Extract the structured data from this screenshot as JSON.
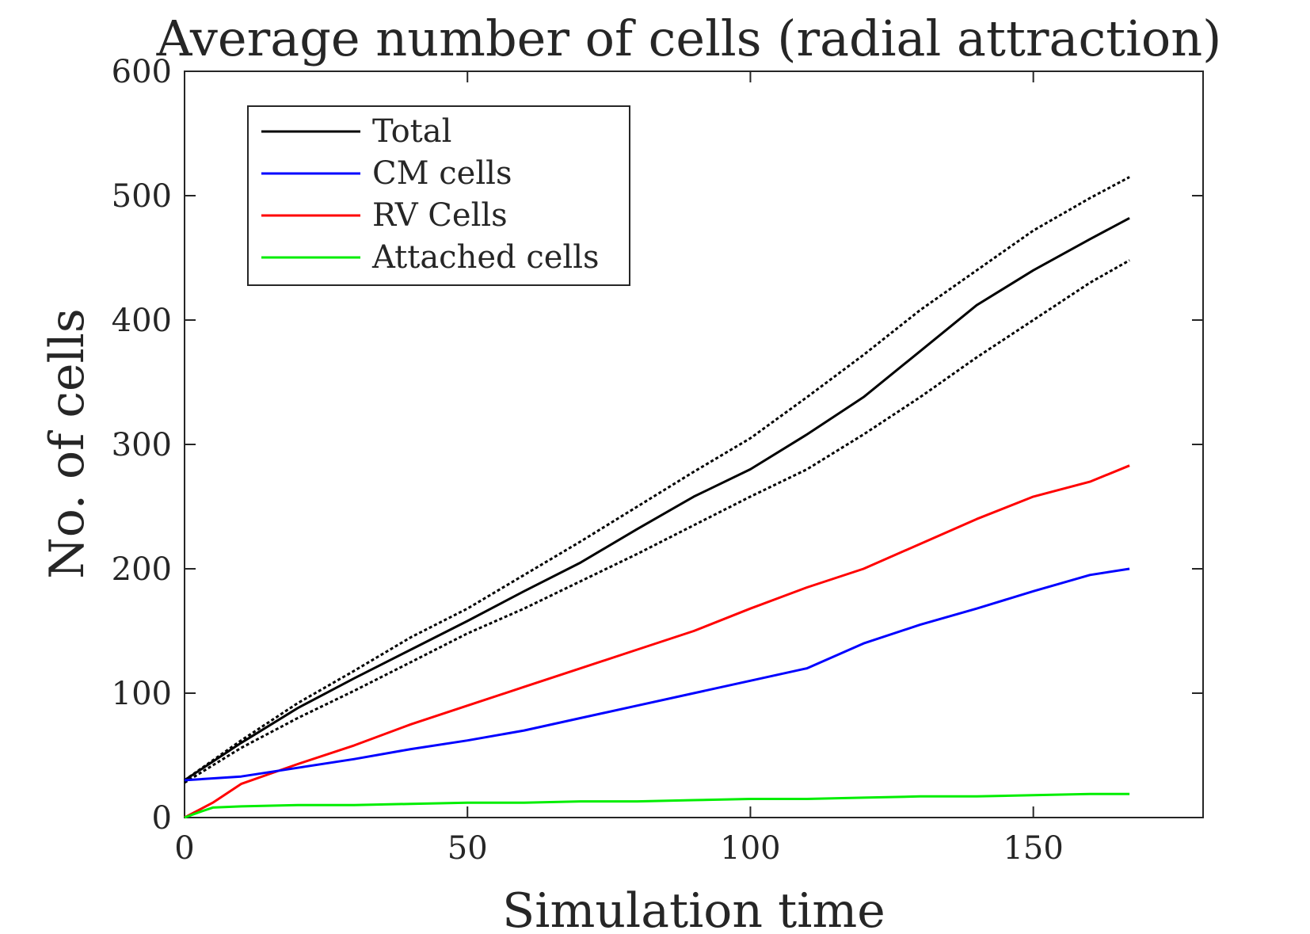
{
  "chart_data": {
    "type": "line",
    "title": "Average number of cells (radial attraction)",
    "xlabel": "Simulation time",
    "ylabel": "No. of cells",
    "xlim": [
      0,
      180
    ],
    "ylim": [
      0,
      600
    ],
    "xticks": [
      0,
      50,
      100,
      150
    ],
    "yticks": [
      0,
      100,
      200,
      300,
      400,
      500,
      600
    ],
    "grid": false,
    "legend_position": "top-left",
    "series": [
      {
        "name": "Total",
        "color": "#000000",
        "style": "solid",
        "x": [
          0,
          10,
          20,
          30,
          40,
          50,
          60,
          70,
          80,
          90,
          100,
          110,
          120,
          130,
          140,
          150,
          160,
          167
        ],
        "y": [
          30,
          60,
          88,
          112,
          135,
          158,
          182,
          205,
          232,
          258,
          280,
          308,
          338,
          375,
          412,
          440,
          465,
          482
        ]
      },
      {
        "name": "CM cells",
        "color": "#0000ff",
        "style": "solid",
        "x": [
          0,
          10,
          20,
          30,
          40,
          50,
          60,
          70,
          80,
          90,
          100,
          110,
          120,
          130,
          140,
          150,
          160,
          167
        ],
        "y": [
          30,
          33,
          40,
          47,
          55,
          62,
          70,
          80,
          90,
          100,
          110,
          120,
          140,
          155,
          168,
          182,
          195,
          200
        ]
      },
      {
        "name": "RV Cells",
        "color": "#ff0000",
        "style": "solid",
        "x": [
          0,
          5,
          10,
          15,
          20,
          30,
          40,
          50,
          60,
          70,
          80,
          90,
          100,
          110,
          120,
          130,
          140,
          150,
          160,
          167
        ],
        "y": [
          0,
          12,
          27,
          35,
          43,
          58,
          75,
          90,
          105,
          120,
          135,
          150,
          168,
          185,
          200,
          220,
          240,
          258,
          270,
          283
        ]
      },
      {
        "name": "Attached cells",
        "color": "#00ee00",
        "style": "solid",
        "x": [
          0,
          3,
          5,
          10,
          20,
          30,
          40,
          50,
          60,
          70,
          80,
          90,
          100,
          110,
          120,
          130,
          140,
          150,
          160,
          167
        ],
        "y": [
          0,
          5,
          8,
          9,
          10,
          10,
          11,
          12,
          12,
          13,
          13,
          14,
          15,
          15,
          16,
          17,
          17,
          18,
          19,
          19
        ]
      },
      {
        "color": "#000000",
        "style": "dotted",
        "x": [
          0,
          10,
          20,
          30,
          40,
          50,
          60,
          70,
          80,
          90,
          100,
          110,
          120,
          130,
          140,
          150,
          160,
          167
        ],
        "y": [
          30,
          62,
          92,
          118,
          145,
          168,
          195,
          222,
          250,
          278,
          305,
          338,
          372,
          408,
          440,
          472,
          498,
          515
        ]
      },
      {
        "color": "#000000",
        "style": "dotted",
        "x": [
          0,
          10,
          20,
          30,
          40,
          50,
          60,
          70,
          80,
          90,
          100,
          110,
          120,
          130,
          140,
          150,
          160,
          167
        ],
        "y": [
          28,
          56,
          80,
          102,
          125,
          148,
          168,
          190,
          212,
          235,
          258,
          280,
          308,
          338,
          370,
          400,
          430,
          448
        ]
      }
    ]
  }
}
